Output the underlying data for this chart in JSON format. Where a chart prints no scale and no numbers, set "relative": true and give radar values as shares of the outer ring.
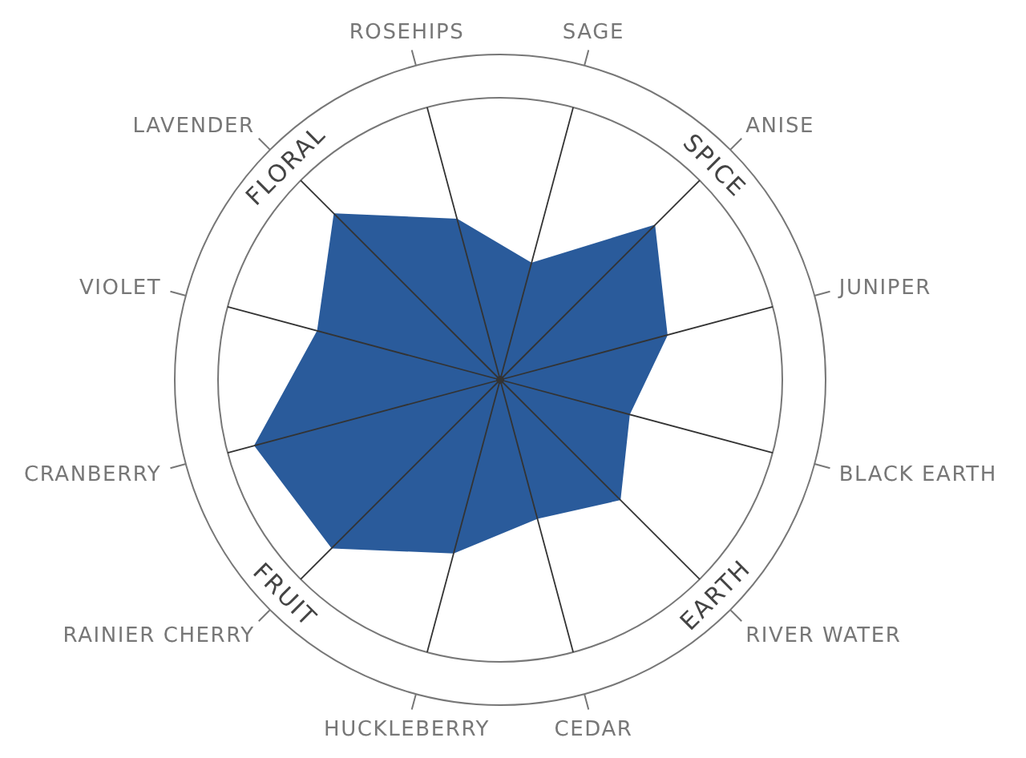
{
  "chart_data": {
    "type": "radar",
    "relative": true,
    "categories": [
      "SAGE",
      "ANISE",
      "JUNIPER",
      "BLACK EARTH",
      "RIVER WATER",
      "CEDAR",
      "HUCKLEBERRY",
      "RAINIER CHERRY",
      "CRANBERRY",
      "VIOLET",
      "LAVENDER",
      "ROSEHIPS"
    ],
    "series": [
      {
        "color": "#2a5b9b",
        "values": [
          0.37,
          0.67,
          0.53,
          0.41,
          0.52,
          0.44,
          0.55,
          0.73,
          0.78,
          0.58,
          0.72,
          0.51
        ]
      }
    ],
    "annotations": [
      {
        "text": "SPICE",
        "x": "ANISE"
      },
      {
        "text": "EARTH",
        "x": "RIVER WATER"
      },
      {
        "text": "FRUIT",
        "x": "RAINIER CHERRY"
      },
      {
        "text": "FLORAL",
        "x": "LAVENDER"
      }
    ]
  }
}
